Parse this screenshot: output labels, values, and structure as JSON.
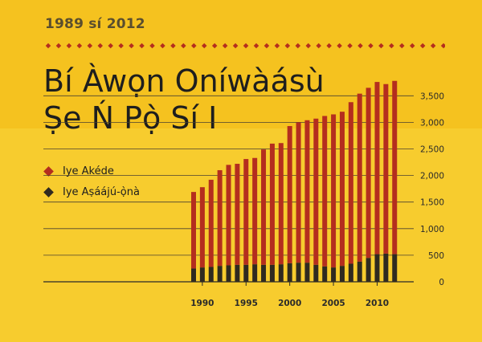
{
  "subtitle": "1989 sí 2012",
  "title_line1": "Bí Àwọn Oníwàásù",
  "title_line2": "Ṣe Ń Pọ̀ Sí I",
  "colors": {
    "background": "#F7CC2E",
    "band": "#F5C21F",
    "red": "#B42E1E",
    "dark": "#2F2A20",
    "diamond": "#B42E1E"
  },
  "legend": [
    {
      "label": "Iye Akéde",
      "color": "#B42E1E"
    },
    {
      "label": "Iye Aṣáájú-ọ̀nà",
      "color": "#2F2A20"
    }
  ],
  "chart_data": {
    "type": "bar",
    "stacked": true,
    "categories": [
      1989,
      1990,
      1991,
      1992,
      1993,
      1994,
      1995,
      1996,
      1997,
      1998,
      1999,
      2000,
      2001,
      2002,
      2003,
      2004,
      2005,
      2006,
      2007,
      2008,
      2009,
      2010,
      2011,
      2012
    ],
    "x_tick_labels": [
      "1990",
      "1995",
      "2000",
      "2005",
      "2010"
    ],
    "y_tick_labels": [
      "0",
      "500",
      "1,000",
      "1,500",
      "2,000",
      "2,500",
      "3,000",
      "3,500"
    ],
    "ylim": [
      0,
      3750
    ],
    "grid": true,
    "legend_position": "top-left",
    "series": [
      {
        "name": "Iye Aṣáájú-ọ̀nà",
        "values": [
          250,
          270,
          280,
          300,
          310,
          320,
          320,
          330,
          320,
          320,
          330,
          350,
          360,
          360,
          320,
          290,
          270,
          300,
          340,
          380,
          450,
          520,
          530,
          520
        ]
      },
      {
        "name": "Iye Akéde",
        "values": [
          1440,
          1510,
          1640,
          1800,
          1890,
          1900,
          1990,
          2000,
          2170,
          2280,
          2280,
          2580,
          2640,
          2680,
          2750,
          2830,
          2880,
          2900,
          3040,
          3160,
          3200,
          3240,
          3190,
          3260
        ]
      }
    ]
  }
}
